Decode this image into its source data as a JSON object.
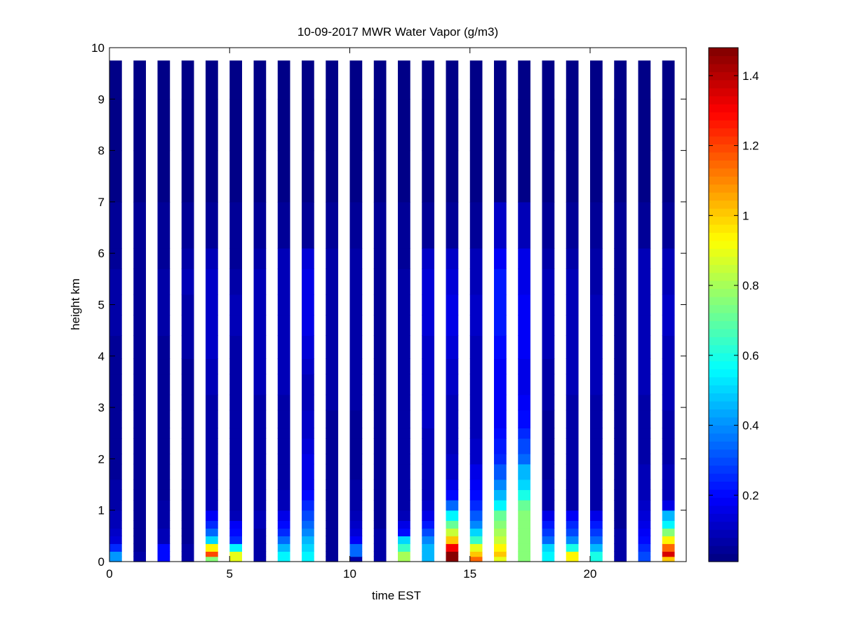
{
  "chart_data": {
    "type": "heatmap",
    "title": "10-09-2017 MWR Water Vapor (g/m3)",
    "xlabel": "time EST",
    "ylabel": "height km",
    "xlim": [
      0,
      24
    ],
    "ylim": [
      0,
      10
    ],
    "xticks": [
      0,
      5,
      10,
      15,
      20
    ],
    "yticks": [
      0,
      1,
      2,
      3,
      4,
      5,
      6,
      7,
      8,
      9,
      10
    ],
    "colorbar": {
      "colormap": "jet",
      "range": [
        0.01,
        1.48
      ],
      "ticks": [
        0.2,
        0.4,
        0.6,
        0.8,
        1,
        1.2,
        1.4
      ]
    },
    "grid": false,
    "time_hours": [
      0,
      1,
      2,
      3,
      4,
      5,
      6,
      7,
      8,
      9,
      10,
      11,
      12,
      13,
      14,
      15,
      16,
      17,
      18,
      19,
      20,
      21,
      22,
      23
    ],
    "height_km": [
      0.05,
      0.15,
      0.3,
      0.45,
      0.6,
      0.75,
      0.9,
      1.1,
      1.3,
      1.5,
      1.75,
      2.0,
      2.25,
      2.5,
      2.8,
      3.1,
      3.45,
      3.8,
      4.2,
      4.6,
      5.0,
      5.45,
      5.9,
      6.5,
      7.5,
      8.5,
      9.5
    ],
    "height_edges_km": [
      0,
      0.1,
      0.2,
      0.35,
      0.5,
      0.65,
      0.8,
      1.0,
      1.2,
      1.4,
      1.6,
      1.9,
      2.1,
      2.4,
      2.6,
      2.95,
      3.25,
      3.65,
      3.95,
      4.4,
      4.8,
      5.2,
      5.7,
      6.1,
      7.0,
      8.0,
      9.0,
      9.75
    ],
    "values": [
      [
        0.42,
        0.42,
        0.25,
        0.13,
        0.11,
        0.09,
        0.08,
        0.07,
        0.06,
        0.06,
        0.05,
        0.05,
        0.05,
        0.05,
        0.05,
        0.05,
        0.05,
        0.05,
        0.05,
        0.06,
        0.07,
        0.06,
        0.05,
        0.04,
        0.03,
        0.02,
        0.02
      ],
      [
        0.06,
        0.06,
        0.05,
        0.05,
        0.05,
        0.05,
        0.05,
        0.05,
        0.05,
        0.05,
        0.05,
        0.05,
        0.05,
        0.05,
        0.05,
        0.05,
        0.05,
        0.05,
        0.05,
        0.05,
        0.05,
        0.05,
        0.05,
        0.04,
        0.03,
        0.02,
        0.02
      ],
      [
        0.2,
        0.2,
        0.2,
        0.09,
        0.08,
        0.07,
        0.06,
        0.06,
        0.05,
        0.05,
        0.05,
        0.05,
        0.05,
        0.05,
        0.05,
        0.05,
        0.05,
        0.05,
        0.05,
        0.06,
        0.07,
        0.07,
        0.05,
        0.04,
        0.03,
        0.02,
        0.02
      ],
      [
        0.06,
        0.06,
        0.06,
        0.05,
        0.05,
        0.05,
        0.05,
        0.05,
        0.05,
        0.05,
        0.05,
        0.05,
        0.05,
        0.05,
        0.05,
        0.05,
        0.05,
        0.05,
        0.06,
        0.07,
        0.07,
        0.08,
        0.06,
        0.04,
        0.03,
        0.02,
        0.02
      ],
      [
        0.75,
        1.2,
        0.95,
        0.5,
        0.35,
        0.25,
        0.18,
        0.09,
        0.08,
        0.07,
        0.06,
        0.06,
        0.06,
        0.06,
        0.06,
        0.07,
        0.1,
        0.09,
        0.12,
        0.12,
        0.12,
        0.11,
        0.1,
        0.05,
        0.03,
        0.02,
        0.02
      ],
      [
        0.9,
        0.9,
        0.55,
        0.25,
        0.2,
        0.18,
        0.1,
        0.07,
        0.06,
        0.06,
        0.06,
        0.06,
        0.06,
        0.06,
        0.06,
        0.06,
        0.07,
        0.07,
        0.07,
        0.08,
        0.08,
        0.06,
        0.05,
        0.04,
        0.03,
        0.02,
        0.02
      ],
      [
        0.06,
        0.06,
        0.06,
        0.06,
        0.07,
        0.08,
        0.08,
        0.07,
        0.06,
        0.06,
        0.06,
        0.06,
        0.06,
        0.06,
        0.06,
        0.06,
        0.08,
        0.08,
        0.09,
        0.09,
        0.09,
        0.08,
        0.07,
        0.04,
        0.03,
        0.02,
        0.02
      ],
      [
        0.55,
        0.55,
        0.45,
        0.35,
        0.25,
        0.2,
        0.15,
        0.09,
        0.08,
        0.07,
        0.06,
        0.06,
        0.06,
        0.06,
        0.06,
        0.07,
        0.09,
        0.09,
        0.1,
        0.1,
        0.1,
        0.09,
        0.08,
        0.04,
        0.03,
        0.02,
        0.02
      ],
      [
        0.55,
        0.55,
        0.5,
        0.45,
        0.4,
        0.35,
        0.3,
        0.25,
        0.2,
        0.17,
        0.16,
        0.15,
        0.14,
        0.12,
        0.11,
        0.1,
        0.1,
        0.12,
        0.14,
        0.15,
        0.16,
        0.15,
        0.13,
        0.05,
        0.03,
        0.02,
        0.02
      ],
      [
        0.05,
        0.05,
        0.05,
        0.05,
        0.05,
        0.05,
        0.05,
        0.05,
        0.05,
        0.05,
        0.05,
        0.05,
        0.05,
        0.05,
        0.05,
        0.06,
        0.07,
        0.06,
        0.06,
        0.07,
        0.07,
        0.07,
        0.06,
        0.04,
        0.03,
        0.02,
        0.02
      ],
      [
        0.06,
        0.35,
        0.35,
        0.18,
        0.13,
        0.11,
        0.09,
        0.07,
        0.06,
        0.06,
        0.05,
        0.05,
        0.05,
        0.05,
        0.05,
        0.06,
        0.06,
        0.06,
        0.06,
        0.07,
        0.07,
        0.07,
        0.06,
        0.04,
        0.03,
        0.02,
        0.02
      ],
      [
        0.06,
        0.06,
        0.06,
        0.06,
        0.06,
        0.05,
        0.05,
        0.05,
        0.05,
        0.05,
        0.05,
        0.05,
        0.05,
        0.05,
        0.05,
        0.05,
        0.05,
        0.05,
        0.05,
        0.05,
        0.05,
        0.05,
        0.05,
        0.04,
        0.03,
        0.02,
        0.02
      ],
      [
        0.8,
        0.8,
        0.65,
        0.5,
        0.2,
        0.15,
        0.1,
        0.07,
        0.06,
        0.06,
        0.06,
        0.06,
        0.06,
        0.06,
        0.06,
        0.06,
        0.06,
        0.06,
        0.06,
        0.06,
        0.06,
        0.06,
        0.05,
        0.04,
        0.03,
        0.02,
        0.02
      ],
      [
        0.45,
        0.45,
        0.45,
        0.4,
        0.3,
        0.22,
        0.17,
        0.11,
        0.09,
        0.08,
        0.08,
        0.08,
        0.09,
        0.1,
        0.11,
        0.11,
        0.11,
        0.12,
        0.12,
        0.13,
        0.14,
        0.13,
        0.11,
        0.05,
        0.03,
        0.02,
        0.02
      ],
      [
        1.48,
        1.48,
        1.3,
        1.0,
        0.85,
        0.7,
        0.55,
        0.35,
        0.2,
        0.15,
        0.12,
        0.11,
        0.1,
        0.1,
        0.1,
        0.1,
        0.11,
        0.12,
        0.13,
        0.15,
        0.15,
        0.14,
        0.12,
        0.05,
        0.03,
        0.02,
        0.02
      ],
      [
        1.15,
        1.0,
        0.9,
        0.65,
        0.5,
        0.4,
        0.33,
        0.25,
        0.2,
        0.18,
        0.15,
        0.12,
        0.11,
        0.1,
        0.1,
        0.09,
        0.09,
        0.09,
        0.1,
        0.11,
        0.11,
        0.1,
        0.09,
        0.04,
        0.03,
        0.02,
        0.02
      ],
      [
        0.9,
        1.0,
        0.95,
        0.85,
        0.8,
        0.75,
        0.7,
        0.55,
        0.45,
        0.4,
        0.33,
        0.26,
        0.23,
        0.2,
        0.18,
        0.18,
        0.18,
        0.19,
        0.2,
        0.22,
        0.23,
        0.22,
        0.18,
        0.12,
        0.03,
        0.02,
        0.02
      ],
      [
        0.75,
        0.75,
        0.75,
        0.75,
        0.75,
        0.75,
        0.75,
        0.7,
        0.6,
        0.5,
        0.45,
        0.35,
        0.3,
        0.25,
        0.2,
        0.18,
        0.16,
        0.16,
        0.18,
        0.18,
        0.19,
        0.17,
        0.15,
        0.1,
        0.03,
        0.02,
        0.02
      ],
      [
        0.55,
        0.55,
        0.5,
        0.35,
        0.28,
        0.22,
        0.16,
        0.07,
        0.06,
        0.06,
        0.05,
        0.05,
        0.05,
        0.05,
        0.05,
        0.06,
        0.07,
        0.07,
        0.08,
        0.09,
        0.09,
        0.08,
        0.07,
        0.04,
        0.03,
        0.02,
        0.02
      ],
      [
        0.95,
        0.95,
        0.6,
        0.4,
        0.3,
        0.24,
        0.18,
        0.07,
        0.06,
        0.06,
        0.06,
        0.06,
        0.06,
        0.06,
        0.06,
        0.07,
        0.08,
        0.08,
        0.09,
        0.09,
        0.09,
        0.08,
        0.07,
        0.04,
        0.03,
        0.02,
        0.02
      ],
      [
        0.6,
        0.6,
        0.45,
        0.35,
        0.28,
        0.22,
        0.17,
        0.07,
        0.06,
        0.06,
        0.06,
        0.06,
        0.06,
        0.06,
        0.06,
        0.06,
        0.1,
        0.08,
        0.08,
        0.08,
        0.08,
        0.07,
        0.06,
        0.04,
        0.03,
        0.02,
        0.02
      ],
      [
        0.07,
        0.07,
        0.07,
        0.06,
        0.06,
        0.05,
        0.05,
        0.05,
        0.05,
        0.05,
        0.05,
        0.05,
        0.05,
        0.05,
        0.05,
        0.05,
        0.05,
        0.05,
        0.05,
        0.05,
        0.05,
        0.05,
        0.05,
        0.04,
        0.03,
        0.02,
        0.02
      ],
      [
        0.3,
        0.3,
        0.25,
        0.2,
        0.18,
        0.16,
        0.13,
        0.11,
        0.1,
        0.09,
        0.08,
        0.07,
        0.07,
        0.07,
        0.07,
        0.07,
        0.09,
        0.08,
        0.09,
        0.1,
        0.1,
        0.1,
        0.09,
        0.05,
        0.03,
        0.02,
        0.02
      ],
      [
        1.0,
        1.35,
        1.15,
        0.95,
        0.75,
        0.55,
        0.45,
        0.15,
        0.1,
        0.09,
        0.08,
        0.07,
        0.07,
        0.07,
        0.07,
        0.1,
        0.09,
        0.09,
        0.1,
        0.11,
        0.11,
        0.1,
        0.08,
        0.04,
        0.03,
        0.02,
        0.02
      ]
    ]
  }
}
